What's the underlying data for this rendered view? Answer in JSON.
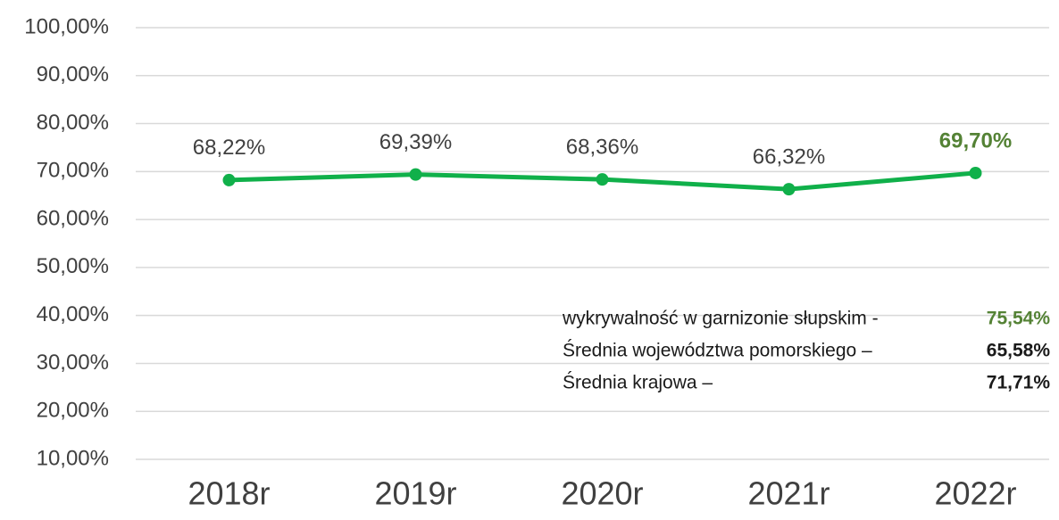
{
  "chart_data": {
    "type": "line",
    "categories": [
      "2018r",
      "2019r",
      "2020r",
      "2021r",
      "2022r"
    ],
    "series": [
      {
        "color": "#10b04a",
        "values": [
          68.22,
          69.39,
          68.36,
          66.32,
          69.7
        ],
        "value_labels": [
          "68,22%",
          "69,39%",
          "68,36%",
          "66,32%",
          "69,70%"
        ],
        "value_label_colors": [
          "#404040",
          "#404040",
          "#404040",
          "#404040",
          "#548235"
        ]
      }
    ],
    "ylim": [
      10,
      100
    ],
    "yticks": [
      {
        "value": 10,
        "label": "10,00%"
      },
      {
        "value": 20,
        "label": "20,00%"
      },
      {
        "value": 30,
        "label": "30,00%"
      },
      {
        "value": 40,
        "label": "40,00%"
      },
      {
        "value": 50,
        "label": "50,00%"
      },
      {
        "value": 60,
        "label": "60,00%"
      },
      {
        "value": 70,
        "label": "70,00%"
      },
      {
        "value": 80,
        "label": "80,00%"
      },
      {
        "value": 90,
        "label": "90,00%"
      },
      {
        "value": 100,
        "label": "100,00%"
      }
    ],
    "grid": true,
    "annotations": [
      {
        "text": "wykrywalność w garnizonie słupskim -",
        "value": "75,54%",
        "color": "#548235"
      },
      {
        "text": "Średnia województwa pomorskiego –",
        "value": "65,58%",
        "color": "#1a1a1a"
      },
      {
        "text": "Średnia krajowa –",
        "value": "71,71%",
        "color": "#1a1a1a"
      }
    ]
  }
}
